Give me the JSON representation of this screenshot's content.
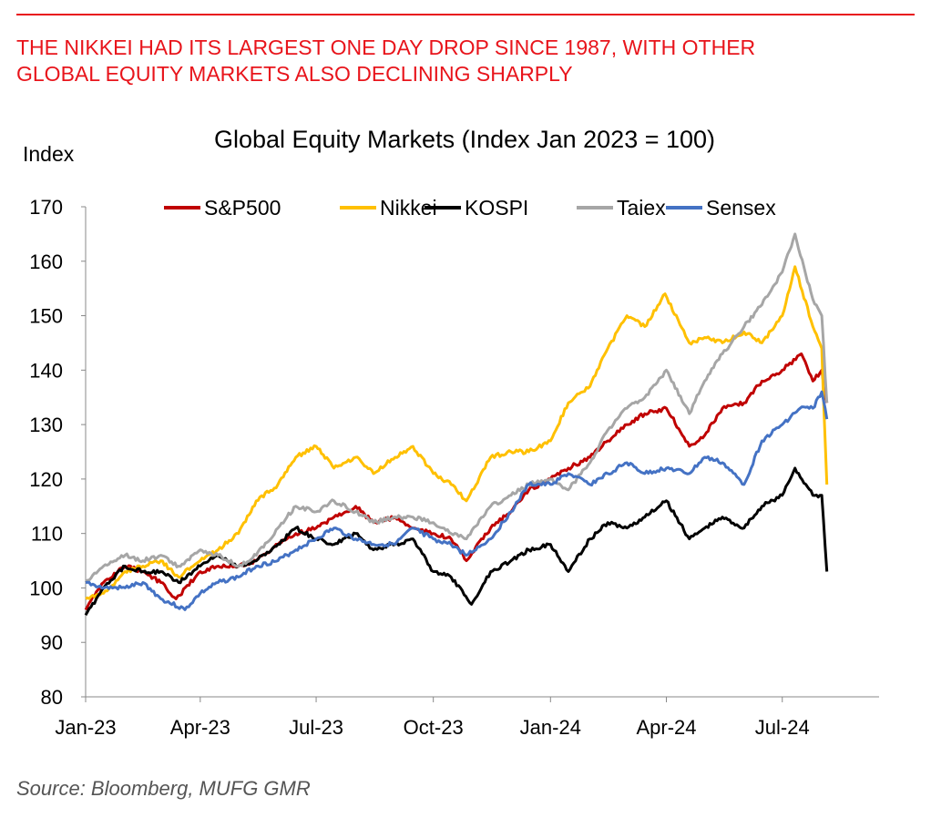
{
  "headline": {
    "line1": "THE NIKKEI HAD ITS LARGEST ONE DAY DROP SINCE 1987, WITH OTHER",
    "line2": "GLOBAL EQUITY MARKETS ALSO DECLINING SHARPLY"
  },
  "source": "Source: Bloomberg, MUFG GMR",
  "colors": {
    "headline": "#e8141b",
    "axis": "#888888"
  },
  "chart_data": {
    "type": "line",
    "title": "Global Equity Markets (Index Jan 2023 = 100)",
    "ylabel": "Index",
    "xlabel": "",
    "ylim": [
      80,
      170
    ],
    "yticks": [
      80,
      90,
      100,
      110,
      120,
      130,
      140,
      150,
      160,
      170
    ],
    "xlim": [
      "2023-01-01",
      "2024-09-15"
    ],
    "xticks": [
      {
        "date": "2023-01-01",
        "label": "Jan-23"
      },
      {
        "date": "2023-04-01",
        "label": "Apr-23"
      },
      {
        "date": "2023-07-01",
        "label": "Jul-23"
      },
      {
        "date": "2023-10-01",
        "label": "Oct-23"
      },
      {
        "date": "2024-01-01",
        "label": "Jan-24"
      },
      {
        "date": "2024-04-01",
        "label": "Apr-24"
      },
      {
        "date": "2024-07-01",
        "label": "Jul-24"
      }
    ],
    "grid": false,
    "legend": "top",
    "series": [
      {
        "name": "S&P500",
        "color": "#c00000",
        "points": [
          [
            "2023-01-01",
            96
          ],
          [
            "2023-01-15",
            101
          ],
          [
            "2023-02-01",
            104
          ],
          [
            "2023-02-15",
            103
          ],
          [
            "2023-03-01",
            101
          ],
          [
            "2023-03-13",
            98
          ],
          [
            "2023-04-01",
            103
          ],
          [
            "2023-04-15",
            104
          ],
          [
            "2023-05-01",
            104
          ],
          [
            "2023-05-15",
            105
          ],
          [
            "2023-06-01",
            108
          ],
          [
            "2023-06-15",
            110
          ],
          [
            "2023-07-01",
            111
          ],
          [
            "2023-07-15",
            113
          ],
          [
            "2023-08-01",
            115
          ],
          [
            "2023-08-15",
            112
          ],
          [
            "2023-09-01",
            113
          ],
          [
            "2023-09-15",
            111
          ],
          [
            "2023-10-01",
            110
          ],
          [
            "2023-10-15",
            109
          ],
          [
            "2023-10-27",
            105
          ],
          [
            "2023-11-15",
            111
          ],
          [
            "2023-12-01",
            114
          ],
          [
            "2023-12-15",
            118
          ],
          [
            "2024-01-01",
            120
          ],
          [
            "2024-01-15",
            122
          ],
          [
            "2024-02-01",
            124
          ],
          [
            "2024-02-15",
            127
          ],
          [
            "2024-03-01",
            130
          ],
          [
            "2024-03-15",
            132
          ],
          [
            "2024-04-01",
            133
          ],
          [
            "2024-04-19",
            126
          ],
          [
            "2024-05-01",
            128
          ],
          [
            "2024-05-15",
            133
          ],
          [
            "2024-06-01",
            134
          ],
          [
            "2024-06-15",
            138
          ],
          [
            "2024-07-01",
            140
          ],
          [
            "2024-07-16",
            143
          ],
          [
            "2024-07-25",
            138
          ],
          [
            "2024-08-01",
            140
          ],
          [
            "2024-08-05",
            134
          ]
        ]
      },
      {
        "name": "Nikkei",
        "color": "#ffc000",
        "points": [
          [
            "2023-01-01",
            98
          ],
          [
            "2023-01-15",
            99
          ],
          [
            "2023-02-01",
            103
          ],
          [
            "2023-02-15",
            104
          ],
          [
            "2023-03-01",
            105
          ],
          [
            "2023-03-15",
            102
          ],
          [
            "2023-04-01",
            105
          ],
          [
            "2023-04-15",
            107
          ],
          [
            "2023-05-01",
            110
          ],
          [
            "2023-05-15",
            116
          ],
          [
            "2023-06-01",
            119
          ],
          [
            "2023-06-15",
            124
          ],
          [
            "2023-07-01",
            126
          ],
          [
            "2023-07-15",
            122
          ],
          [
            "2023-08-01",
            124
          ],
          [
            "2023-08-15",
            121
          ],
          [
            "2023-09-01",
            124
          ],
          [
            "2023-09-15",
            126
          ],
          [
            "2023-10-01",
            121
          ],
          [
            "2023-10-15",
            119
          ],
          [
            "2023-10-27",
            116
          ],
          [
            "2023-11-15",
            124
          ],
          [
            "2023-12-01",
            125
          ],
          [
            "2023-12-15",
            125
          ],
          [
            "2024-01-01",
            127
          ],
          [
            "2024-01-15",
            134
          ],
          [
            "2024-02-01",
            137
          ],
          [
            "2024-02-15",
            144
          ],
          [
            "2024-03-01",
            150
          ],
          [
            "2024-03-15",
            148
          ],
          [
            "2024-03-31",
            154
          ],
          [
            "2024-04-19",
            145
          ],
          [
            "2024-05-01",
            146
          ],
          [
            "2024-05-15",
            145
          ],
          [
            "2024-06-01",
            147
          ],
          [
            "2024-06-15",
            145
          ],
          [
            "2024-07-01",
            150
          ],
          [
            "2024-07-11",
            159
          ],
          [
            "2024-07-25",
            148
          ],
          [
            "2024-08-01",
            144
          ],
          [
            "2024-08-02",
            137
          ],
          [
            "2024-08-05",
            119
          ]
        ]
      },
      {
        "name": "KOSPI",
        "color": "#000000",
        "points": [
          [
            "2023-01-01",
            95
          ],
          [
            "2023-01-15",
            100
          ],
          [
            "2023-02-01",
            104
          ],
          [
            "2023-02-15",
            103
          ],
          [
            "2023-03-01",
            103
          ],
          [
            "2023-03-15",
            101
          ],
          [
            "2023-04-01",
            104
          ],
          [
            "2023-04-15",
            106
          ],
          [
            "2023-05-01",
            104
          ],
          [
            "2023-05-15",
            105
          ],
          [
            "2023-06-01",
            108
          ],
          [
            "2023-06-15",
            111
          ],
          [
            "2023-07-01",
            109
          ],
          [
            "2023-07-15",
            108
          ],
          [
            "2023-08-01",
            110
          ],
          [
            "2023-08-15",
            107
          ],
          [
            "2023-09-01",
            108
          ],
          [
            "2023-09-15",
            109
          ],
          [
            "2023-10-01",
            103
          ],
          [
            "2023-10-15",
            102
          ],
          [
            "2023-10-31",
            97
          ],
          [
            "2023-11-15",
            103
          ],
          [
            "2023-12-01",
            105
          ],
          [
            "2023-12-15",
            107
          ],
          [
            "2024-01-01",
            108
          ],
          [
            "2024-01-15",
            103
          ],
          [
            "2024-02-01",
            109
          ],
          [
            "2024-02-15",
            112
          ],
          [
            "2024-03-01",
            111
          ],
          [
            "2024-03-15",
            113
          ],
          [
            "2024-04-01",
            116
          ],
          [
            "2024-04-19",
            109
          ],
          [
            "2024-05-01",
            111
          ],
          [
            "2024-05-15",
            113
          ],
          [
            "2024-06-01",
            111
          ],
          [
            "2024-06-15",
            115
          ],
          [
            "2024-07-01",
            117
          ],
          [
            "2024-07-11",
            122
          ],
          [
            "2024-07-25",
            117
          ],
          [
            "2024-08-01",
            117
          ],
          [
            "2024-08-05",
            103
          ]
        ]
      },
      {
        "name": "Taiex",
        "color": "#a6a6a6",
        "points": [
          [
            "2023-01-01",
            101
          ],
          [
            "2023-01-15",
            104
          ],
          [
            "2023-02-01",
            106
          ],
          [
            "2023-02-15",
            105
          ],
          [
            "2023-03-01",
            106
          ],
          [
            "2023-03-15",
            104
          ],
          [
            "2023-04-01",
            107
          ],
          [
            "2023-04-15",
            106
          ],
          [
            "2023-05-01",
            104
          ],
          [
            "2023-05-15",
            106
          ],
          [
            "2023-06-01",
            111
          ],
          [
            "2023-06-15",
            115
          ],
          [
            "2023-07-01",
            114
          ],
          [
            "2023-07-15",
            116
          ],
          [
            "2023-08-01",
            114
          ],
          [
            "2023-08-15",
            112
          ],
          [
            "2023-09-01",
            113
          ],
          [
            "2023-09-15",
            113
          ],
          [
            "2023-10-01",
            112
          ],
          [
            "2023-10-15",
            110
          ],
          [
            "2023-10-27",
            109
          ],
          [
            "2023-11-15",
            115
          ],
          [
            "2023-12-01",
            117
          ],
          [
            "2023-12-15",
            119
          ],
          [
            "2024-01-01",
            120
          ],
          [
            "2024-01-15",
            118
          ],
          [
            "2024-02-01",
            123
          ],
          [
            "2024-02-15",
            129
          ],
          [
            "2024-03-01",
            133
          ],
          [
            "2024-03-15",
            135
          ],
          [
            "2024-04-01",
            140
          ],
          [
            "2024-04-19",
            132
          ],
          [
            "2024-05-01",
            138
          ],
          [
            "2024-05-15",
            143
          ],
          [
            "2024-06-01",
            148
          ],
          [
            "2024-06-15",
            152
          ],
          [
            "2024-07-01",
            158
          ],
          [
            "2024-07-11",
            165
          ],
          [
            "2024-07-25",
            153
          ],
          [
            "2024-08-01",
            150
          ],
          [
            "2024-08-05",
            134
          ]
        ]
      },
      {
        "name": "Sensex",
        "color": "#4472c4",
        "points": [
          [
            "2023-01-01",
            101
          ],
          [
            "2023-01-15",
            100
          ],
          [
            "2023-02-01",
            100
          ],
          [
            "2023-02-15",
            101
          ],
          [
            "2023-03-01",
            98
          ],
          [
            "2023-03-20",
            96
          ],
          [
            "2023-04-01",
            99
          ],
          [
            "2023-04-15",
            101
          ],
          [
            "2023-05-01",
            102
          ],
          [
            "2023-05-15",
            104
          ],
          [
            "2023-06-01",
            105
          ],
          [
            "2023-06-15",
            107
          ],
          [
            "2023-07-01",
            109
          ],
          [
            "2023-07-15",
            111
          ],
          [
            "2023-08-01",
            109
          ],
          [
            "2023-08-15",
            108
          ],
          [
            "2023-09-01",
            108
          ],
          [
            "2023-09-15",
            111
          ],
          [
            "2023-10-01",
            109
          ],
          [
            "2023-10-15",
            108
          ],
          [
            "2023-10-27",
            106
          ],
          [
            "2023-11-15",
            109
          ],
          [
            "2023-12-01",
            114
          ],
          [
            "2023-12-15",
            119
          ],
          [
            "2024-01-01",
            119
          ],
          [
            "2024-01-15",
            121
          ],
          [
            "2024-02-01",
            119
          ],
          [
            "2024-02-15",
            121
          ],
          [
            "2024-03-01",
            123
          ],
          [
            "2024-03-15",
            121
          ],
          [
            "2024-04-01",
            122
          ],
          [
            "2024-04-19",
            121
          ],
          [
            "2024-05-01",
            124
          ],
          [
            "2024-05-15",
            123
          ],
          [
            "2024-06-01",
            119
          ],
          [
            "2024-06-15",
            127
          ],
          [
            "2024-07-01",
            130
          ],
          [
            "2024-07-15",
            133
          ],
          [
            "2024-07-25",
            133
          ],
          [
            "2024-08-01",
            136
          ],
          [
            "2024-08-05",
            131
          ]
        ]
      }
    ]
  }
}
